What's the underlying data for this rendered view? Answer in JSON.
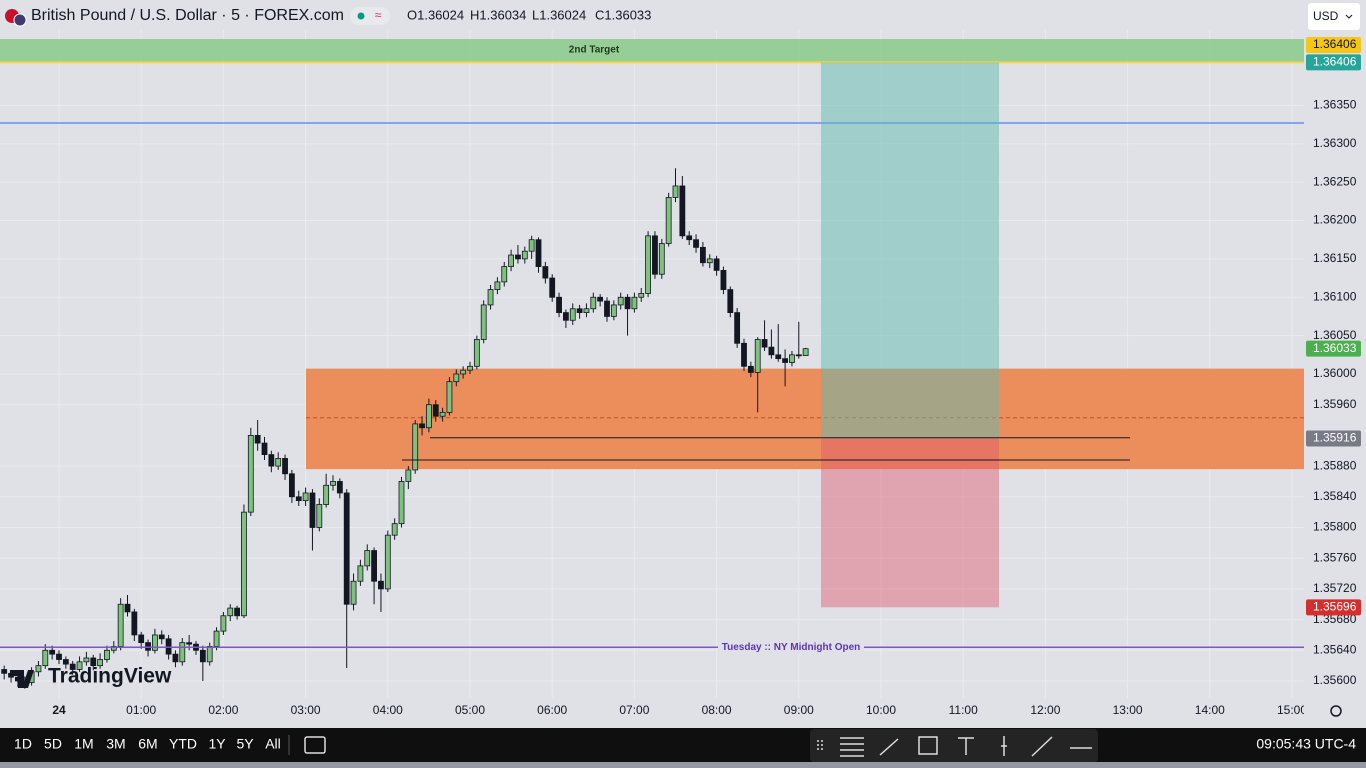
{
  "header": {
    "title": "British Pound / U.S. Dollar · 5 · FOREX.com",
    "ohlc": [
      "O1.36024",
      "H1.36034",
      "L1.36024",
      "C1.36033"
    ],
    "currency": "USD"
  },
  "price_axis": {
    "ticks": [
      {
        "value": 1.3635,
        "label": "1.36350"
      },
      {
        "value": 1.363,
        "label": "1.36300"
      },
      {
        "value": 1.3625,
        "label": "1.36250"
      },
      {
        "value": 1.362,
        "label": "1.36200"
      },
      {
        "value": 1.3615,
        "label": "1.36150"
      },
      {
        "value": 1.361,
        "label": "1.36100"
      },
      {
        "value": 1.3605,
        "label": "1.36050"
      },
      {
        "value": 1.36,
        "label": "1.36000"
      },
      {
        "value": 1.3596,
        "label": "1.35960"
      },
      {
        "value": 1.3588,
        "label": "1.35880"
      },
      {
        "value": 1.3584,
        "label": "1.35840"
      },
      {
        "value": 1.358,
        "label": "1.35800"
      },
      {
        "value": 1.3576,
        "label": "1.35760"
      },
      {
        "value": 1.3572,
        "label": "1.35720"
      },
      {
        "value": 1.3568,
        "label": "1.35680"
      },
      {
        "value": 1.3564,
        "label": "1.35640"
      },
      {
        "value": 1.356,
        "label": "1.35600"
      }
    ]
  },
  "time_axis": {
    "labels": [
      "24",
      "01:00",
      "02:00",
      "03:00",
      "04:00",
      "05:00",
      "06:00",
      "07:00",
      "08:00",
      "09:00",
      "10:00",
      "11:00",
      "12:00",
      "13:00",
      "14:00",
      "15:00"
    ]
  },
  "price_labels": [
    {
      "value": 1.36406,
      "label": "1.36406",
      "color": "#f5c518"
    },
    {
      "value": 1.36406,
      "label": "1.36406",
      "color": "#26a69a"
    },
    {
      "value": 1.36033,
      "label": "1.36033",
      "color": "#4caf50"
    },
    {
      "value": 1.35916,
      "label": "1.35916",
      "color": "#787b86"
    },
    {
      "value": 1.35696,
      "label": "1.35696",
      "color": "#d32f2f"
    }
  ],
  "drawings": {
    "target_label": "2nd Target",
    "blue_line": 1.36327,
    "zone_top": 1.36007,
    "zone_bottom": 1.35876,
    "zone_mid": 1.35943,
    "line_a": 1.35917,
    "line_b": 1.35888,
    "midnight_line": 1.35644,
    "midnight_label": "Tuesday :: NY Midnight Open"
  },
  "candles": [
    [
      1.35615,
      1.3562,
      1.35602,
      1.3561
    ],
    [
      1.3561,
      1.35614,
      1.35598,
      1.35605
    ],
    [
      1.35605,
      1.35608,
      1.35592,
      1.356
    ],
    [
      1.356,
      1.35606,
      1.3559,
      1.35598
    ],
    [
      1.35598,
      1.35618,
      1.35594,
      1.35612
    ],
    [
      1.35612,
      1.35626,
      1.35606,
      1.3562
    ],
    [
      1.3562,
      1.35648,
      1.35616,
      1.3564
    ],
    [
      1.3564,
      1.35646,
      1.35628,
      1.35635
    ],
    [
      1.35635,
      1.3564,
      1.35622,
      1.35628
    ],
    [
      1.35628,
      1.35632,
      1.35616,
      1.35622
    ],
    [
      1.35622,
      1.35626,
      1.35608,
      1.35615
    ],
    [
      1.35615,
      1.35632,
      1.35612,
      1.35625
    ],
    [
      1.35625,
      1.35638,
      1.3562,
      1.3563
    ],
    [
      1.3563,
      1.35634,
      1.35614,
      1.3562
    ],
    [
      1.3562,
      1.35636,
      1.35616,
      1.35628
    ],
    [
      1.35628,
      1.35646,
      1.35624,
      1.3564
    ],
    [
      1.3564,
      1.35652,
      1.35636,
      1.35645
    ],
    [
      1.35645,
      1.35708,
      1.3564,
      1.357
    ],
    [
      1.357,
      1.35712,
      1.35684,
      1.3569
    ],
    [
      1.3569,
      1.35694,
      1.35652,
      1.3566
    ],
    [
      1.3566,
      1.35664,
      1.35642,
      1.3565
    ],
    [
      1.3565,
      1.35654,
      1.35632,
      1.3564
    ],
    [
      1.3564,
      1.35668,
      1.35636,
      1.3566
    ],
    [
      1.3566,
      1.35666,
      1.35648,
      1.35655
    ],
    [
      1.35655,
      1.3566,
      1.35628,
      1.35635
    ],
    [
      1.35635,
      1.3564,
      1.35618,
      1.35625
    ],
    [
      1.35625,
      1.35656,
      1.3562,
      1.3565
    ],
    [
      1.3565,
      1.3566,
      1.3564,
      1.35648
    ],
    [
      1.35648,
      1.35652,
      1.35634,
      1.3564
    ],
    [
      1.3564,
      1.35646,
      1.356,
      1.35625
    ],
    [
      1.35625,
      1.3565,
      1.3562,
      1.35645
    ],
    [
      1.35645,
      1.3567,
      1.3564,
      1.35665
    ],
    [
      1.35665,
      1.3569,
      1.3566,
      1.35685
    ],
    [
      1.35685,
      1.357,
      1.35678,
      1.35695
    ],
    [
      1.35695,
      1.35698,
      1.3568,
      1.35685
    ],
    [
      1.35685,
      1.3583,
      1.35682,
      1.3582
    ],
    [
      1.3582,
      1.3593,
      1.35815,
      1.3592
    ],
    [
      1.3592,
      1.3594,
      1.359,
      1.3591
    ],
    [
      1.3591,
      1.35918,
      1.35888,
      1.35895
    ],
    [
      1.35895,
      1.359,
      1.35872,
      1.3588
    ],
    [
      1.3588,
      1.35898,
      1.35875,
      1.3589
    ],
    [
      1.3589,
      1.35895,
      1.35862,
      1.3587
    ],
    [
      1.3587,
      1.35875,
      1.35832,
      1.3584
    ],
    [
      1.3584,
      1.35848,
      1.35828,
      1.35835
    ],
    [
      1.35835,
      1.35852,
      1.35828,
      1.35845
    ],
    [
      1.35845,
      1.3585,
      1.3577,
      1.358
    ],
    [
      1.358,
      1.35838,
      1.35795,
      1.3583
    ],
    [
      1.3583,
      1.3587,
      1.35826,
      1.35855
    ],
    [
      1.35855,
      1.35868,
      1.35848,
      1.3586
    ],
    [
      1.3586,
      1.35864,
      1.35838,
      1.35845
    ],
    [
      1.35845,
      1.3585,
      1.35617,
      1.357
    ],
    [
      1.357,
      1.3574,
      1.35692,
      1.3573
    ],
    [
      1.3573,
      1.35758,
      1.35724,
      1.3575
    ],
    [
      1.3575,
      1.35778,
      1.35744,
      1.3577
    ],
    [
      1.3577,
      1.35774,
      1.357,
      1.3573
    ],
    [
      1.3573,
      1.3574,
      1.3569,
      1.3572
    ],
    [
      1.3572,
      1.35796,
      1.35716,
      1.3579
    ],
    [
      1.3579,
      1.35812,
      1.35784,
      1.35805
    ],
    [
      1.35805,
      1.35866,
      1.358,
      1.3586
    ],
    [
      1.3586,
      1.3588,
      1.3585,
      1.35875
    ],
    [
      1.35875,
      1.3594,
      1.3587,
      1.35935
    ],
    [
      1.35935,
      1.35945,
      1.3592,
      1.3593
    ],
    [
      1.3593,
      1.35968,
      1.35924,
      1.3596
    ],
    [
      1.3596,
      1.35966,
      1.35938,
      1.35945
    ],
    [
      1.35945,
      1.35956,
      1.35938,
      1.3595
    ],
    [
      1.3595,
      1.35996,
      1.35946,
      1.3599
    ],
    [
      1.3599,
      1.36006,
      1.35984,
      1.36
    ],
    [
      1.36,
      1.3601,
      1.35994,
      1.36005
    ],
    [
      1.36005,
      1.36016,
      1.36,
      1.3601
    ],
    [
      1.3601,
      1.3605,
      1.36006,
      1.36045
    ],
    [
      1.36045,
      1.36096,
      1.3604,
      1.3609
    ],
    [
      1.3609,
      1.36116,
      1.36084,
      1.3611
    ],
    [
      1.3611,
      1.36126,
      1.36104,
      1.3612
    ],
    [
      1.3612,
      1.36146,
      1.36114,
      1.3614
    ],
    [
      1.3614,
      1.36162,
      1.36134,
      1.36155
    ],
    [
      1.36155,
      1.36168,
      1.36144,
      1.3615
    ],
    [
      1.3615,
      1.36166,
      1.36144,
      1.3616
    ],
    [
      1.3616,
      1.3618,
      1.3615,
      1.36175
    ],
    [
      1.36175,
      1.36178,
      1.36132,
      1.3614
    ],
    [
      1.3614,
      1.36146,
      1.36118,
      1.36125
    ],
    [
      1.36125,
      1.3613,
      1.36094,
      1.361
    ],
    [
      1.361,
      1.36106,
      1.36074,
      1.3608
    ],
    [
      1.3608,
      1.36084,
      1.3606,
      1.3607
    ],
    [
      1.3607,
      1.36092,
      1.36064,
      1.36085
    ],
    [
      1.36085,
      1.3609,
      1.36072,
      1.3608
    ],
    [
      1.3608,
      1.36092,
      1.36074,
      1.36085
    ],
    [
      1.36085,
      1.36106,
      1.3608,
      1.361
    ],
    [
      1.361,
      1.36104,
      1.36088,
      1.36095
    ],
    [
      1.36095,
      1.361,
      1.36068,
      1.36075
    ],
    [
      1.36075,
      1.36096,
      1.3607,
      1.3609
    ],
    [
      1.3609,
      1.36106,
      1.36084,
      1.361
    ],
    [
      1.361,
      1.36104,
      1.3605,
      1.36085
    ],
    [
      1.36085,
      1.36106,
      1.3608,
      1.361
    ],
    [
      1.361,
      1.36112,
      1.36094,
      1.36105
    ],
    [
      1.36105,
      1.36186,
      1.361,
      1.3618
    ],
    [
      1.3618,
      1.36186,
      1.36124,
      1.3613
    ],
    [
      1.3613,
      1.36176,
      1.36124,
      1.3617
    ],
    [
      1.3617,
      1.36236,
      1.36166,
      1.3623
    ],
    [
      1.3623,
      1.36268,
      1.36224,
      1.36245
    ],
    [
      1.36245,
      1.36258,
      1.36176,
      1.3618
    ],
    [
      1.3618,
      1.36186,
      1.36168,
      1.36175
    ],
    [
      1.36175,
      1.36182,
      1.36158,
      1.36165
    ],
    [
      1.36165,
      1.36172,
      1.3614,
      1.36145
    ],
    [
      1.36145,
      1.36156,
      1.36138,
      1.3615
    ],
    [
      1.3615,
      1.36154,
      1.36128,
      1.36135
    ],
    [
      1.36135,
      1.3614,
      1.36104,
      1.3611
    ],
    [
      1.3611,
      1.36114,
      1.36074,
      1.3608
    ],
    [
      1.3608,
      1.36086,
      1.36034,
      1.3604
    ],
    [
      1.3604,
      1.36046,
      1.36004,
      1.3601
    ],
    [
      1.3601,
      1.36016,
      1.35996,
      1.36002
    ],
    [
      1.36002,
      1.36048,
      1.3595,
      1.36045
    ],
    [
      1.36045,
      1.3607,
      1.3603,
      1.36035
    ],
    [
      1.36035,
      1.36058,
      1.3602,
      1.36025
    ],
    [
      1.36025,
      1.36065,
      1.36016,
      1.3602
    ],
    [
      1.3602,
      1.36032,
      1.35984,
      1.36015
    ],
    [
      1.36015,
      1.3603,
      1.3601,
      1.36025
    ],
    [
      1.36025,
      1.36068,
      1.3602,
      1.36024
    ],
    [
      1.36024,
      1.36034,
      1.36024,
      1.36033
    ]
  ],
  "logo": "TradingView",
  "toolbar": {
    "intervals": [
      "1D",
      "5D",
      "1M",
      "3M",
      "6M",
      "YTD",
      "1Y",
      "5Y",
      "All"
    ],
    "clock": "09:05:43 UTC-4"
  }
}
